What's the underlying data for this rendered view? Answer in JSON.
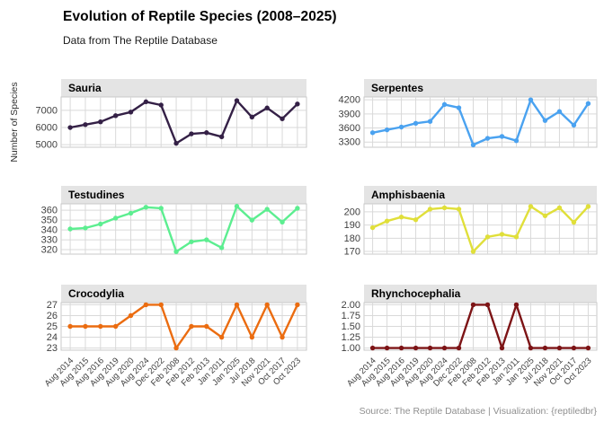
{
  "header": {
    "title": "Evolution of Reptile Species (2008–2025)",
    "subtitle": "Data from The Reptile Database"
  },
  "footer": {
    "caption": "Source: The Reptile Database | Visualization: {reptiledbr}"
  },
  "chart_data": {
    "type": "line",
    "title": "Evolution of Reptile Species (2008–2025)",
    "subtitle": "Data from The Reptile Database",
    "ylabel": "Number of Species",
    "xlabel": "",
    "legend_position": "none",
    "grid": "major gridlines on, light gray, panel border, gray facet strip headers",
    "facet_layout": "2 columns x 3 rows, independent (free) y scales, shared categorical x axis labeled only on bottom row, x labels rotated 45deg",
    "categories": [
      "Aug 2014",
      "Aug 2015",
      "Aug 2016",
      "Aug 2019",
      "Aug 2020",
      "Aug 2024",
      "Dec 2022",
      "Feb 2008",
      "Feb 2012",
      "Feb 2013",
      "Jan 2011",
      "Jan 2025",
      "Jul 2018",
      "Nov 2021",
      "Oct 2017",
      "Oct 2023"
    ],
    "series": [
      {
        "name": "Sauria",
        "color": "#342046",
        "values": [
          6000,
          6170,
          6330,
          6690,
          6900,
          7500,
          7310,
          5080,
          5630,
          5700,
          5460,
          7570,
          6610,
          7140,
          6510,
          7370
        ],
        "ytick_labels": [
          "5000",
          "6000",
          "7000"
        ],
        "ytick_values": [
          5000,
          6000,
          7000
        ],
        "ylim": [
          4850,
          7780
        ]
      },
      {
        "name": "Serpentes",
        "color": "#4AA2F0",
        "values": [
          3500,
          3560,
          3620,
          3700,
          3740,
          4100,
          4030,
          3240,
          3380,
          3420,
          3330,
          4200,
          3760,
          3950,
          3660,
          4120
        ],
        "ytick_labels": [
          "3300",
          "3600",
          "3900",
          "4200"
        ],
        "ytick_values": [
          3300,
          3600,
          3900,
          4200
        ],
        "ylim": [
          3190,
          4260
        ]
      },
      {
        "name": "Testudines",
        "color": "#5CEE90",
        "values": [
          341,
          342,
          346,
          352,
          357,
          363,
          362,
          318,
          328,
          330,
          322,
          364,
          350,
          361,
          348,
          362
        ],
        "ytick_labels": [
          "320",
          "330",
          "340",
          "350",
          "360"
        ],
        "ytick_values": [
          320,
          330,
          340,
          350,
          360
        ],
        "ylim": [
          315.5,
          366.5
        ]
      },
      {
        "name": "Amphisbaenia",
        "color": "#E0DF3A",
        "values": [
          188,
          193,
          196,
          194,
          202,
          203,
          202,
          170,
          181,
          183,
          181,
          204,
          197,
          203,
          192,
          204
        ],
        "ytick_labels": [
          "170",
          "180",
          "190",
          "200"
        ],
        "ytick_values": [
          170,
          180,
          190,
          200
        ],
        "ylim": [
          168,
          206
        ]
      },
      {
        "name": "Crocodylia",
        "color": "#EB6C10",
        "values": [
          25,
          25,
          25,
          25,
          26,
          27,
          27,
          23,
          25,
          25,
          24,
          27,
          24,
          27,
          24,
          27
        ],
        "ytick_labels": [
          "23",
          "24",
          "25",
          "26",
          "27"
        ],
        "ytick_values": [
          23,
          24,
          25,
          26,
          27
        ],
        "ylim": [
          22.8,
          27.2
        ]
      },
      {
        "name": "Rhynchocephalia",
        "color": "#7D1416",
        "values": [
          1,
          1,
          1,
          1,
          1,
          1,
          1,
          2,
          2,
          1,
          2,
          1,
          1,
          1,
          1,
          1
        ],
        "ytick_labels": [
          "1.00",
          "1.25",
          "1.50",
          "1.75",
          "2.00"
        ],
        "ytick_values": [
          1,
          1.25,
          1.5,
          1.75,
          2
        ],
        "ylim": [
          0.95,
          2.05
        ]
      }
    ]
  },
  "theme": {
    "strip_bg": "#e4e4e4",
    "gridline_color": "#d9d9d9",
    "panel_border_color": "#c9c9c9",
    "axis_text_color": "#404040",
    "caption_color": "#8f8f8f"
  }
}
